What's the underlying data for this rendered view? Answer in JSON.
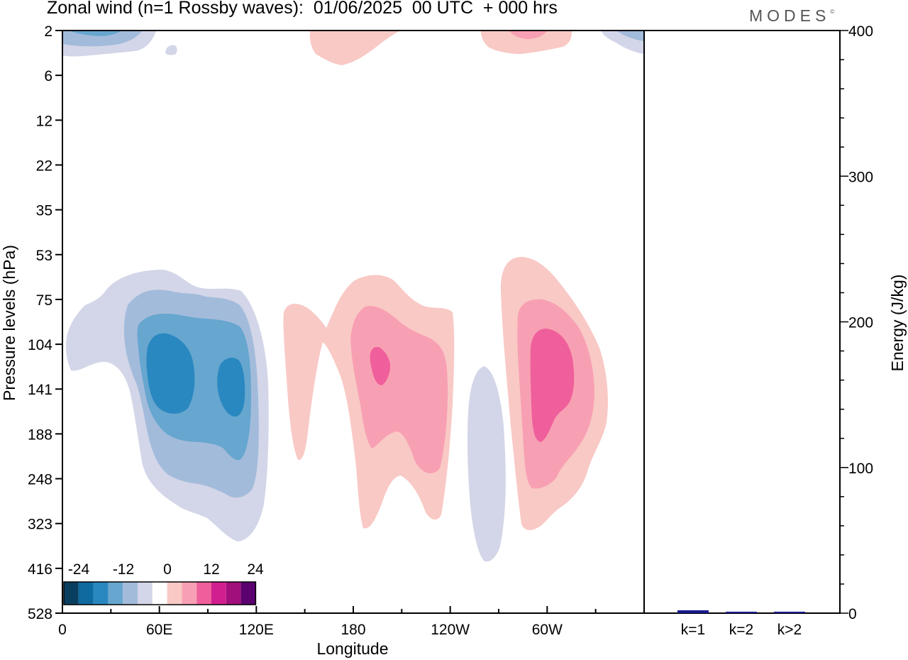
{
  "header": {
    "title": "Zonal wind (n=1 Rossby waves):  01/06/2025  00 UTC  + 000 hrs",
    "logo_text": "MODES",
    "logo_mark": "©"
  },
  "chart_data": [
    {
      "type": "heatmap",
      "title": "Zonal wind (n=1 Rossby waves):  01/06/2025  00 UTC  + 000 hrs",
      "xlabel": "Longitude",
      "ylabel": "Pressure levels (hPa)",
      "x_ticks": [
        "0",
        "60E",
        "120E",
        "180",
        "120W",
        "60W"
      ],
      "x_tick_degrees": [
        0,
        60,
        120,
        180,
        240,
        300
      ],
      "xlim": [
        0,
        360
      ],
      "y_ticks": [
        2,
        6,
        12,
        22,
        35,
        53,
        75,
        104,
        141,
        188,
        248,
        323,
        416,
        528
      ],
      "y_axis": "pressure levels, top to bottom",
      "colorbar": {
        "tick_labels": [
          "-24",
          "-12",
          "0",
          "12",
          "24"
        ],
        "colors": [
          "#0a3e5f",
          "#0f6aa0",
          "#2a88c0",
          "#66a6cf",
          "#a3bbdb",
          "#d3d6e8",
          "#ffffff",
          "#f9c9c5",
          "#f8a0b3",
          "#ef5f9c",
          "#d11f8f",
          "#a10f7c",
          "#5a006f"
        ]
      },
      "features": [
        {
          "sign": "negative",
          "peak_level": "#2a88c0",
          "lon_range": [
            10,
            130
          ],
          "p_range": [
            53,
            323
          ]
        },
        {
          "sign": "positive",
          "peak_level": "#ef5f9c",
          "lon_range": [
            137,
            241
          ],
          "p_range": [
            75,
            323
          ]
        },
        {
          "sign": "negative",
          "peak_level": "#d3d6e8",
          "lon_range": [
            250,
            272
          ],
          "p_range": [
            120,
            416
          ]
        },
        {
          "sign": "positive",
          "peak_level": "#ef5f9c",
          "lon_range": [
            272,
            337
          ],
          "p_range": [
            53,
            323
          ]
        },
        {
          "sign": "negative",
          "peak_level": "#66a6cf",
          "lon_range": [
            0,
            57
          ],
          "p_range": [
            2,
            4
          ]
        },
        {
          "sign": "positive",
          "peak_level": "#f9c9c5",
          "lon_range": [
            153,
            219
          ],
          "p_range": [
            2,
            5
          ]
        },
        {
          "sign": "positive",
          "peak_level": "#f8a0b3",
          "lon_range": [
            259,
            315
          ],
          "p_range": [
            2,
            4
          ]
        },
        {
          "sign": "negative",
          "peak_level": "#66a6cf",
          "lon_range": [
            335,
            360
          ],
          "p_range": [
            2,
            4
          ]
        }
      ]
    },
    {
      "type": "bar",
      "categories": [
        "k=1",
        "k=2",
        "k>2"
      ],
      "values": [
        2,
        1,
        1
      ],
      "ylabel": "Energy (J/kg)",
      "ylim": [
        0,
        400
      ],
      "y_ticks": [
        0,
        100,
        200,
        300,
        400
      ],
      "bar_color": "#1a1a8c"
    }
  ]
}
